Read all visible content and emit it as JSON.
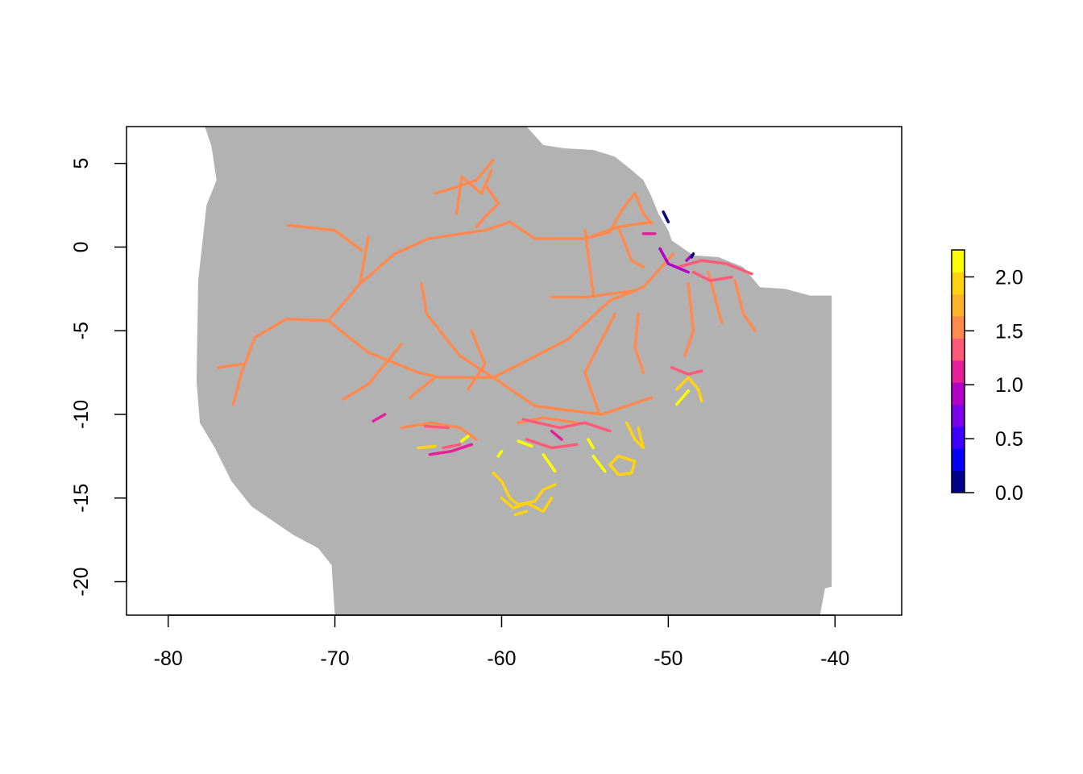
{
  "chart_data": {
    "type": "map",
    "title": "",
    "xlabel": "",
    "ylabel": "",
    "xlim": [
      -82.5,
      -36
    ],
    "ylim": [
      -22,
      7.2
    ],
    "x_ticks": [
      {
        "value": -80,
        "label": "-80"
      },
      {
        "value": -70,
        "label": "-70"
      },
      {
        "value": -60,
        "label": "-60"
      },
      {
        "value": -50,
        "label": "-50"
      },
      {
        "value": -40,
        "label": "-40"
      }
    ],
    "y_ticks": [
      {
        "value": 5,
        "label": "5"
      },
      {
        "value": 0,
        "label": "0"
      },
      {
        "value": -5,
        "label": "-5"
      },
      {
        "value": -10,
        "label": "-10"
      },
      {
        "value": -15,
        "label": "-15"
      },
      {
        "value": -20,
        "label": "-20"
      }
    ],
    "land_color": "#b2b2b2",
    "colorbar": {
      "range": [
        0,
        2.25
      ],
      "ticks": [
        {
          "value": 0.0,
          "label": "0.0"
        },
        {
          "value": 0.5,
          "label": "0.5"
        },
        {
          "value": 1.0,
          "label": "1.0"
        },
        {
          "value": 1.5,
          "label": "1.5"
        },
        {
          "value": 2.0,
          "label": "2.0"
        }
      ],
      "colors": [
        "#00008b",
        "#0000ff",
        "#3b00ff",
        "#7e00ea",
        "#b300c8",
        "#e6209a",
        "#ff5a78",
        "#ff8a50",
        "#ffb32a",
        "#ffd30f",
        "#ffff00"
      ]
    },
    "land_outline": [
      [
        -77.8,
        7.2
      ],
      [
        -58.5,
        7.2
      ],
      [
        -57.5,
        6.1
      ],
      [
        -56.2,
        5.9
      ],
      [
        -54.5,
        5.8
      ],
      [
        -53.2,
        5.4
      ],
      [
        -52.2,
        4.6
      ],
      [
        -51.5,
        4.0
      ],
      [
        -51.0,
        3.0
      ],
      [
        -50.6,
        2.0
      ],
      [
        -50.0,
        1.0
      ],
      [
        -49.8,
        0.4
      ],
      [
        -48.5,
        -0.5
      ],
      [
        -47.0,
        -0.6
      ],
      [
        -45.5,
        -1.2
      ],
      [
        -44.5,
        -2.4
      ],
      [
        -43.0,
        -2.5
      ],
      [
        -41.5,
        -2.9
      ],
      [
        -40.2,
        -2.9
      ],
      [
        -40.2,
        -20.3
      ],
      [
        -40.6,
        -20.4
      ],
      [
        -40.9,
        -22.0
      ],
      [
        -70.0,
        -22.0
      ],
      [
        -70.2,
        -19.0
      ],
      [
        -71.0,
        -18.0
      ],
      [
        -72.5,
        -17.2
      ],
      [
        -75.0,
        -15.5
      ],
      [
        -76.2,
        -14.0
      ],
      [
        -77.2,
        -12.0
      ],
      [
        -78.1,
        -10.5
      ],
      [
        -78.3,
        -8.0
      ],
      [
        -78.2,
        -2.0
      ],
      [
        -77.7,
        2.5
      ],
      [
        -77.1,
        4.0
      ],
      [
        -77.4,
        6.0
      ]
    ],
    "segments": [
      {
        "value": 1.6,
        "points": [
          [
            -74.8,
            -5.4
          ],
          [
            -72.9,
            -4.3
          ],
          [
            -70.4,
            -4.4
          ],
          [
            -68.5,
            -2.2
          ],
          [
            -66.4,
            -0.4
          ],
          [
            -64.4,
            0.5
          ],
          [
            -61.0,
            1.0
          ],
          [
            -59.5,
            1.5
          ],
          [
            -58.0,
            0.5
          ],
          [
            -55.0,
            0.5
          ],
          [
            -53.0,
            1.2
          ],
          [
            -51.0,
            1.5
          ]
        ]
      },
      {
        "value": 1.6,
        "points": [
          [
            -70.4,
            -4.4
          ],
          [
            -68.0,
            -6.3
          ],
          [
            -65.0,
            -7.5
          ],
          [
            -63.7,
            -7.8
          ],
          [
            -60.5,
            -7.8
          ],
          [
            -58.5,
            -6.8
          ],
          [
            -56.0,
            -5.5
          ],
          [
            -53.5,
            -3.2
          ],
          [
            -51.5,
            -2.4
          ],
          [
            -49.7,
            -0.4
          ]
        ]
      },
      {
        "value": 1.6,
        "points": [
          [
            -74.8,
            -5.4
          ],
          [
            -75.6,
            -7.5
          ],
          [
            -76.1,
            -9.4
          ]
        ]
      },
      {
        "value": 1.6,
        "points": [
          [
            -75.6,
            -7.0
          ],
          [
            -77.0,
            -7.2
          ]
        ]
      },
      {
        "value": 1.6,
        "points": [
          [
            -68.5,
            -2.2
          ],
          [
            -68.0,
            0.6
          ]
        ]
      },
      {
        "value": 1.6,
        "points": [
          [
            -72.8,
            1.3
          ],
          [
            -70.0,
            1.0
          ],
          [
            -68.4,
            -0.2
          ]
        ]
      },
      {
        "value": 1.6,
        "points": [
          [
            -66.0,
            -5.8
          ],
          [
            -68.0,
            -8.2
          ],
          [
            -69.5,
            -9.1
          ]
        ]
      },
      {
        "value": 1.6,
        "points": [
          [
            -64.8,
            -2.2
          ],
          [
            -64.5,
            -4.0
          ],
          [
            -62.5,
            -6.5
          ],
          [
            -60.5,
            -7.8
          ]
        ]
      },
      {
        "value": 1.6,
        "points": [
          [
            -61.8,
            -5.0
          ],
          [
            -61.0,
            -7.0
          ],
          [
            -62.0,
            -8.5
          ]
        ]
      },
      {
        "value": 1.6,
        "points": [
          [
            -65.5,
            -9.0
          ],
          [
            -64.0,
            -7.8
          ]
        ]
      },
      {
        "value": 1.6,
        "points": [
          [
            -60.5,
            -7.8
          ],
          [
            -58.0,
            -9.5
          ],
          [
            -54.0,
            -10.0
          ],
          [
            -51.0,
            -9.0
          ]
        ]
      },
      {
        "value": 1.6,
        "points": [
          [
            -54.5,
            -2.8
          ],
          [
            -55.0,
            1.0
          ]
        ]
      },
      {
        "value": 1.6,
        "points": [
          [
            -53.2,
            -4.0
          ],
          [
            -55.0,
            -7.5
          ],
          [
            -54.2,
            -9.8
          ]
        ]
      },
      {
        "value": 1.6,
        "points": [
          [
            -51.8,
            -4.0
          ],
          [
            -52.0,
            -6.0
          ],
          [
            -51.5,
            -7.5
          ]
        ]
      },
      {
        "value": 1.6,
        "points": [
          [
            -57.0,
            -3.0
          ],
          [
            -55.0,
            -3.0
          ],
          [
            -52.0,
            -2.6
          ]
        ]
      },
      {
        "value": 1.6,
        "points": [
          [
            -64.0,
            3.2
          ],
          [
            -63.0,
            3.5
          ],
          [
            -61.5,
            4.0
          ],
          [
            -60.5,
            5.2
          ]
        ]
      },
      {
        "value": 1.6,
        "points": [
          [
            -62.7,
            2.0
          ],
          [
            -62.4,
            4.2
          ],
          [
            -61.2,
            3.2
          ],
          [
            -60.6,
            4.6
          ]
        ]
      },
      {
        "value": 1.6,
        "points": [
          [
            -61.5,
            1.2
          ],
          [
            -60.9,
            1.9
          ],
          [
            -60.2,
            2.6
          ],
          [
            -60.9,
            3.6
          ]
        ]
      },
      {
        "value": 1.6,
        "points": [
          [
            -55.0,
            0.5
          ],
          [
            -53.5,
            0.9
          ],
          [
            -52.8,
            2.2
          ],
          [
            -52.0,
            3.2
          ],
          [
            -51.5,
            2.0
          ],
          [
            -51.0,
            1.4
          ]
        ]
      },
      {
        "value": 1.6,
        "points": [
          [
            -53.0,
            1.2
          ],
          [
            -52.2,
            -0.8
          ],
          [
            -51.5,
            -1.2
          ]
        ]
      },
      {
        "value": 1.6,
        "points": [
          [
            -66.0,
            -10.8
          ],
          [
            -64.2,
            -10.5
          ],
          [
            -62.5,
            -10.8
          ],
          [
            -61.5,
            -11.5
          ]
        ]
      },
      {
        "value": 1.6,
        "points": [
          [
            -59.0,
            -10.5
          ],
          [
            -57.5,
            -10.2
          ],
          [
            -55.5,
            -10.5
          ]
        ]
      },
      {
        "value": 1.6,
        "points": [
          [
            -48.8,
            -2.2
          ],
          [
            -48.5,
            -5.0
          ],
          [
            -49.0,
            -6.5
          ]
        ]
      },
      {
        "value": 1.6,
        "points": [
          [
            -47.6,
            -1.5
          ],
          [
            -47.2,
            -3.0
          ],
          [
            -46.8,
            -4.5
          ]
        ]
      },
      {
        "value": 1.6,
        "points": [
          [
            -46.0,
            -2.0
          ],
          [
            -45.5,
            -4.0
          ],
          [
            -44.8,
            -5.0
          ]
        ]
      },
      {
        "value": 1.3,
        "points": [
          [
            -49.4,
            -1.2
          ],
          [
            -48.0,
            -0.8
          ],
          [
            -46.5,
            -1.0
          ],
          [
            -45.0,
            -1.6
          ]
        ]
      },
      {
        "value": 1.3,
        "points": [
          [
            -48.5,
            -1.5
          ],
          [
            -47.5,
            -2.0
          ],
          [
            -46.2,
            -1.8
          ]
        ]
      },
      {
        "value": 1.3,
        "points": [
          [
            -58.7,
            -10.3
          ],
          [
            -56.5,
            -10.8
          ],
          [
            -55.0,
            -10.5
          ],
          [
            -53.5,
            -11.0
          ]
        ]
      },
      {
        "value": 1.3,
        "points": [
          [
            -58.5,
            -11.5
          ],
          [
            -57.0,
            -12.0
          ],
          [
            -55.5,
            -11.8
          ]
        ]
      },
      {
        "value": 1.3,
        "points": [
          [
            -64.6,
            -10.7
          ],
          [
            -63.2,
            -10.8
          ]
        ]
      },
      {
        "value": 1.3,
        "points": [
          [
            -63.5,
            -12.0
          ],
          [
            -62.5,
            -11.8
          ]
        ]
      },
      {
        "value": 1.3,
        "points": [
          [
            -49.8,
            -7.2
          ],
          [
            -48.8,
            -7.6
          ],
          [
            -48.0,
            -7.4
          ]
        ]
      },
      {
        "value": 1.2,
        "points": [
          [
            -67.7,
            -10.4
          ],
          [
            -67.0,
            -10.0
          ]
        ]
      },
      {
        "value": 1.2,
        "points": [
          [
            -64.3,
            -12.4
          ],
          [
            -63.0,
            -12.2
          ],
          [
            -61.8,
            -11.8
          ]
        ]
      },
      {
        "value": 1.2,
        "points": [
          [
            -57.0,
            -11.0
          ],
          [
            -56.4,
            -11.5
          ]
        ]
      },
      {
        "value": 1.2,
        "points": [
          [
            -51.5,
            0.8
          ],
          [
            -50.8,
            0.8
          ]
        ]
      },
      {
        "value": 0.9,
        "points": [
          [
            -50.5,
            -0.1
          ],
          [
            -50.0,
            -1.0
          ],
          [
            -48.8,
            -1.5
          ]
        ]
      },
      {
        "value": 0.9,
        "points": [
          [
            -48.9,
            -0.8
          ],
          [
            -48.6,
            -0.5
          ]
        ]
      },
      {
        "value": 0.2,
        "points": [
          [
            -50.3,
            2.1
          ],
          [
            -50.0,
            1.5
          ]
        ]
      },
      {
        "value": 0.2,
        "points": [
          [
            -48.6,
            -0.6
          ],
          [
            -48.5,
            -0.4
          ]
        ]
      },
      {
        "value": 1.95,
        "points": [
          [
            -60.5,
            -13.5
          ],
          [
            -60.0,
            -14.0
          ],
          [
            -59.5,
            -15.0
          ],
          [
            -59.0,
            -15.4
          ],
          [
            -58.0,
            -15.2
          ],
          [
            -57.5,
            -14.5
          ],
          [
            -56.8,
            -14.2
          ]
        ]
      },
      {
        "value": 1.95,
        "points": [
          [
            -60.0,
            -15.0
          ],
          [
            -59.3,
            -15.6
          ],
          [
            -58.5,
            -15.3
          ],
          [
            -57.5,
            -15.8
          ],
          [
            -57.0,
            -15.0
          ]
        ]
      },
      {
        "value": 1.95,
        "points": [
          [
            -59.2,
            -16.0
          ],
          [
            -58.5,
            -15.8
          ]
        ]
      },
      {
        "value": 1.95,
        "points": [
          [
            -53.5,
            -13.0
          ],
          [
            -53.0,
            -12.5
          ],
          [
            -52.0,
            -12.8
          ],
          [
            -52.2,
            -13.5
          ],
          [
            -53.0,
            -13.6
          ],
          [
            -53.5,
            -13.0
          ]
        ]
      },
      {
        "value": 1.95,
        "points": [
          [
            -52.5,
            -10.5
          ],
          [
            -52.0,
            -11.5
          ],
          [
            -51.5,
            -12.0
          ],
          [
            -51.8,
            -10.8
          ]
        ]
      },
      {
        "value": 1.95,
        "points": [
          [
            -49.5,
            -8.5
          ],
          [
            -48.8,
            -7.8
          ],
          [
            -48.2,
            -8.5
          ],
          [
            -48.0,
            -9.2
          ]
        ]
      },
      {
        "value": 1.95,
        "points": [
          [
            -65.0,
            -12.0
          ],
          [
            -64.0,
            -11.9
          ]
        ]
      },
      {
        "value": 2.2,
        "points": [
          [
            -49.5,
            -9.4
          ],
          [
            -48.8,
            -8.6
          ]
        ]
      },
      {
        "value": 2.2,
        "points": [
          [
            -57.5,
            -12.4
          ],
          [
            -56.8,
            -13.4
          ]
        ]
      },
      {
        "value": 2.2,
        "points": [
          [
            -54.5,
            -12.5
          ],
          [
            -53.8,
            -13.4
          ]
        ]
      },
      {
        "value": 2.2,
        "points": [
          [
            -54.8,
            -11.5
          ],
          [
            -54.5,
            -12.0
          ]
        ]
      },
      {
        "value": 2.2,
        "points": [
          [
            -59.0,
            -11.6
          ],
          [
            -58.2,
            -11.9
          ]
        ]
      },
      {
        "value": 2.2,
        "points": [
          [
            -62.4,
            -11.6
          ],
          [
            -62.0,
            -11.3
          ]
        ]
      },
      {
        "value": 2.2,
        "points": [
          [
            -60.2,
            -12.5
          ],
          [
            -60.0,
            -12.2
          ]
        ]
      }
    ]
  }
}
